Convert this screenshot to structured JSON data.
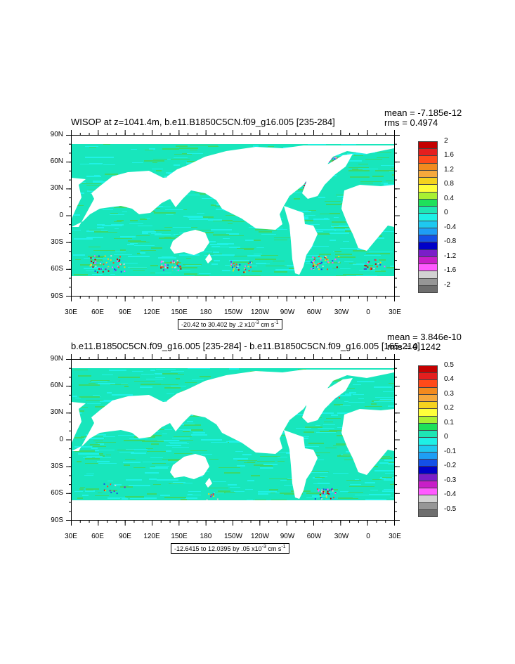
{
  "panels": [
    {
      "title": "WISOP at z=1041.4m, b.e11.B1850C5CN.f09_g16.005 [235-284]",
      "mean": "mean = -7.185e-12",
      "rms": "rms = 0.4974",
      "range_text": "-20.42 to 30.402 by .2 x10",
      "range_exp": "-3",
      "range_units": " cm s",
      "range_units_exp": "-1",
      "lat_labels": [
        "90N",
        "60N",
        "30N",
        "0",
        "30S",
        "60S",
        "90S"
      ],
      "lon_labels": [
        "30E",
        "60E",
        "90E",
        "120E",
        "150E",
        "180",
        "150W",
        "120W",
        "90W",
        "60W",
        "30W",
        "0",
        "30E"
      ],
      "colorbar_labels": [
        "2",
        "1.6",
        "1.2",
        "0.8",
        "0.4",
        "0",
        "-0.4",
        "-0.8",
        "-1.2",
        "-1.6",
        "-2"
      ]
    },
    {
      "title": "b.e11.B1850C5CN.f09_g16.005 [235-284] - b.e11.B1850C5CN.f09_g16.005 [165-214]",
      "mean": "mean = 3.846e-10",
      "rms": "rms = 0.1242",
      "range_text": "-12.6415 to 12.0395 by .05 x10",
      "range_exp": "-3",
      "range_units": " cm s",
      "range_units_exp": "-1",
      "lat_labels": [
        "90N",
        "60N",
        "30N",
        "0",
        "30S",
        "60S",
        "90S"
      ],
      "lon_labels": [
        "30E",
        "60E",
        "90E",
        "120E",
        "150E",
        "180",
        "150W",
        "120W",
        "90W",
        "60W",
        "30W",
        "0",
        "30E"
      ],
      "colorbar_labels": [
        "0.5",
        "0.4",
        "0.3",
        "0.2",
        "0.1",
        "0",
        "-0.1",
        "-0.2",
        "-0.3",
        "-0.4",
        "-0.5"
      ]
    }
  ],
  "colors": {
    "ocean_main": "#18e6bc",
    "ocean_cyan": "#1ff2e6",
    "ocean_green": "#3ad96a",
    "land": "#ffffff",
    "colorbar": [
      "#c40000",
      "#e41e1e",
      "#ff4a1a",
      "#f28a1e",
      "#f5a83c",
      "#f5d21e",
      "#ffff3a",
      "#a8f032",
      "#1ee05a",
      "#1ee6b4",
      "#1ef0e6",
      "#1ec8f0",
      "#1e9ef5",
      "#1450e6",
      "#0000c8",
      "#7a1ec8",
      "#c81ec8",
      "#ff5aff",
      "#d2d2d2",
      "#969696",
      "#6e6e6e"
    ]
  }
}
